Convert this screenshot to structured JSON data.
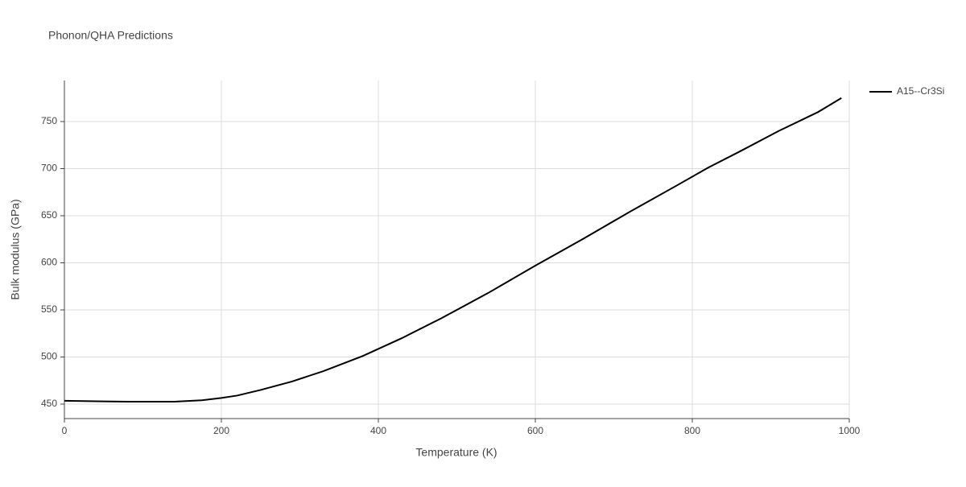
{
  "chart_data": {
    "type": "line",
    "title": "Phonon/QHA Predictions",
    "x_label": "Temperature (K)",
    "y_label": "Bulk modulus (GPa)",
    "x": [
      0,
      40,
      80,
      110,
      140,
      175,
      200,
      220,
      250,
      290,
      330,
      380,
      430,
      480,
      540,
      600,
      660,
      720,
      780,
      820,
      860,
      910,
      960,
      990
    ],
    "series": [
      {
        "name": "A15--Cr3Si",
        "color": "#000000",
        "values": [
          453.5,
          453,
          452.5,
          452.5,
          452.5,
          454,
          456.5,
          459,
          465,
          474,
          485,
          501,
          520,
          541,
          568,
          597,
          625,
          654,
          682,
          701,
          718,
          740,
          760,
          775
        ]
      }
    ],
    "xlim": [
      0,
      1000
    ],
    "xticks": [
      0,
      200,
      400,
      600,
      800,
      1000
    ],
    "ylim": [
      434.6,
      793.6
    ],
    "yticks": [
      450,
      500,
      550,
      600,
      650,
      700,
      750
    ],
    "grid": true,
    "legend": "right"
  }
}
